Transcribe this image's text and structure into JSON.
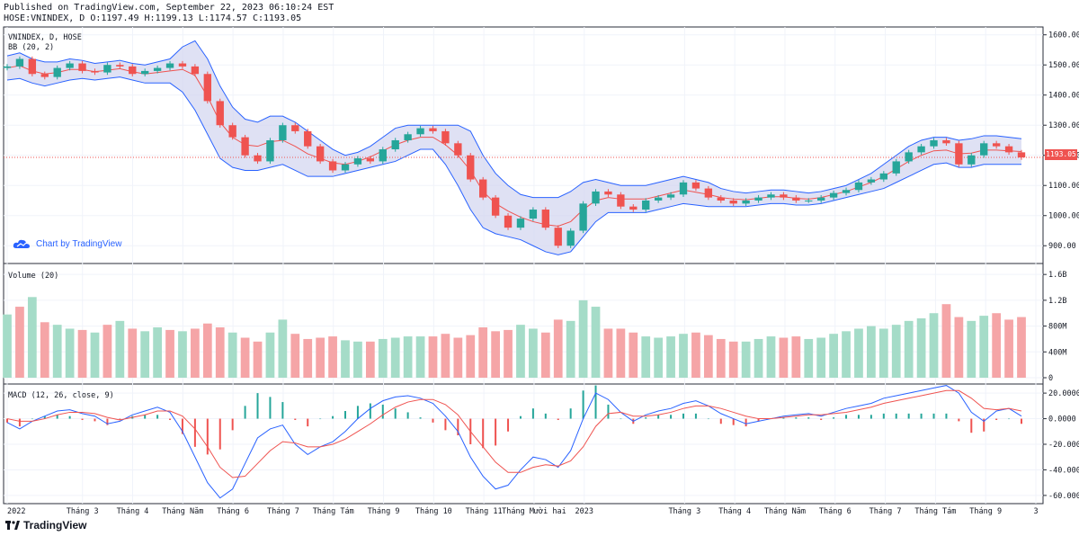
{
  "header": {
    "published": "Published on TradingView.com, September 22, 2023 06:10:24 EST",
    "ohlc": "HOSE:VNINDEX, D O:1197.49 H:1199.13 L:1174.57 C:1193.05"
  },
  "panes": {
    "price_title": "VNINDEX, D, HOSE",
    "bb_title": "BB (20, 2)",
    "volume_title": "Volume (20)",
    "macd_title": "MACD (12, 26, close, 9)",
    "last_price_tag": "1193.05"
  },
  "watermark": {
    "text": "Chart by TradingView",
    "icon": "tradingview-cloud-icon"
  },
  "logo": {
    "text": "TradingView",
    "icon": "tradingview-logo-icon"
  },
  "colors": {
    "up": "#26a69a",
    "down": "#ef5350",
    "bb_band": "#2962ff",
    "bb_fill": "#d1d4f0",
    "basis": "#ef5350",
    "macd_line": "#2962ff",
    "signal_line": "#ef5350",
    "vol_up": "#a5dcc8",
    "vol_down": "#f5a5a7",
    "grid": "#f0f3fa"
  },
  "chart_data": [
    {
      "type": "line",
      "name": "price",
      "ylim": [
        850,
        1620
      ],
      "y_ticks": [
        "1600.00",
        "1500.00",
        "1400.00",
        "1300.00",
        "1200.00",
        "1100.00",
        "1000.00",
        "900.00"
      ],
      "y_tick_values": [
        1600,
        1500,
        1400,
        1300,
        1200,
        1100,
        1000,
        900
      ],
      "x_month_labels": [
        "2022",
        "Tháng 3",
        "Tháng 4",
        "Tháng Năm",
        "Tháng 6",
        "Tháng 7",
        "Tháng Tám",
        "Tháng 9",
        "Tháng 10",
        "Tháng 11",
        "Tháng Mười hai",
        "2023",
        "Tháng 3",
        "Tháng 4",
        "Tháng Năm",
        "Tháng 6",
        "Tháng 7",
        "Tháng Tám",
        "Tháng 9",
        "3"
      ],
      "x_month_index": [
        0,
        1.5,
        2.5,
        3.5,
        4.5,
        5.5,
        6.5,
        7.5,
        8.5,
        9.5,
        10.5,
        11.5,
        13.5,
        14.5,
        15.5,
        16.5,
        17.5,
        18.5,
        19.5,
        20.5
      ],
      "close_series": [
        1495,
        1520,
        1470,
        1460,
        1490,
        1505,
        1480,
        1475,
        1500,
        1495,
        1470,
        1480,
        1490,
        1505,
        1495,
        1470,
        1380,
        1300,
        1260,
        1200,
        1180,
        1250,
        1300,
        1280,
        1230,
        1180,
        1150,
        1170,
        1190,
        1180,
        1220,
        1250,
        1270,
        1290,
        1280,
        1240,
        1200,
        1120,
        1060,
        1000,
        960,
        990,
        1020,
        960,
        900,
        950,
        1040,
        1080,
        1070,
        1030,
        1020,
        1050,
        1060,
        1070,
        1110,
        1090,
        1060,
        1050,
        1040,
        1050,
        1060,
        1070,
        1060,
        1050,
        1050,
        1060,
        1075,
        1085,
        1110,
        1120,
        1140,
        1180,
        1210,
        1230,
        1250,
        1240,
        1170,
        1200,
        1240,
        1230,
        1210,
        1193.05
      ],
      "bb_upper": [
        1530,
        1540,
        1520,
        1510,
        1510,
        1520,
        1515,
        1505,
        1510,
        1515,
        1505,
        1500,
        1510,
        1520,
        1560,
        1580,
        1520,
        1430,
        1360,
        1320,
        1310,
        1330,
        1330,
        1310,
        1280,
        1250,
        1220,
        1200,
        1210,
        1230,
        1260,
        1290,
        1300,
        1300,
        1300,
        1300,
        1300,
        1280,
        1200,
        1140,
        1100,
        1070,
        1060,
        1060,
        1060,
        1080,
        1110,
        1120,
        1110,
        1100,
        1100,
        1100,
        1110,
        1120,
        1130,
        1120,
        1110,
        1090,
        1080,
        1075,
        1080,
        1085,
        1085,
        1080,
        1075,
        1080,
        1090,
        1100,
        1120,
        1140,
        1170,
        1200,
        1230,
        1250,
        1260,
        1260,
        1250,
        1255,
        1265,
        1265,
        1260,
        1255
      ],
      "bb_lower": [
        1450,
        1455,
        1440,
        1430,
        1440,
        1450,
        1455,
        1450,
        1455,
        1460,
        1450,
        1440,
        1440,
        1440,
        1410,
        1350,
        1270,
        1190,
        1160,
        1150,
        1150,
        1160,
        1170,
        1150,
        1130,
        1130,
        1130,
        1140,
        1150,
        1160,
        1170,
        1180,
        1200,
        1220,
        1220,
        1170,
        1100,
        1020,
        960,
        940,
        930,
        920,
        900,
        880,
        870,
        880,
        930,
        980,
        1010,
        1010,
        1010,
        1010,
        1020,
        1030,
        1040,
        1035,
        1030,
        1030,
        1030,
        1030,
        1035,
        1040,
        1040,
        1035,
        1035,
        1040,
        1050,
        1060,
        1070,
        1080,
        1090,
        1110,
        1130,
        1150,
        1170,
        1175,
        1160,
        1160,
        1170,
        1170,
        1170,
        1170
      ]
    },
    {
      "type": "bar",
      "name": "volume",
      "ylim": [
        0,
        1700000000
      ],
      "y_ticks": [
        "1.6B",
        "1.2B",
        "800M",
        "400M",
        "0"
      ],
      "y_tick_values": [
        1600000000,
        1200000000,
        800000000,
        400000000,
        0
      ],
      "values_millions": [
        980,
        1100,
        1250,
        860,
        820,
        760,
        740,
        700,
        820,
        880,
        760,
        720,
        780,
        740,
        720,
        760,
        840,
        780,
        700,
        620,
        560,
        700,
        900,
        680,
        600,
        620,
        640,
        580,
        560,
        560,
        600,
        620,
        640,
        640,
        640,
        680,
        620,
        660,
        780,
        720,
        740,
        820,
        760,
        700,
        900,
        880,
        1200,
        1100,
        760,
        760,
        700,
        640,
        620,
        640,
        680,
        700,
        660,
        600,
        560,
        560,
        600,
        640,
        620,
        640,
        600,
        620,
        680,
        720,
        760,
        800,
        760,
        820,
        880,
        920,
        1000,
        1140,
        940,
        880,
        960,
        1000,
        900,
        940
      ],
      "up_flags": [
        1,
        0,
        1,
        0,
        1,
        1,
        0,
        1,
        0,
        1,
        0,
        1,
        1,
        0,
        1,
        0,
        0,
        0,
        1,
        0,
        0,
        1,
        1,
        0,
        0,
        0,
        0,
        1,
        1,
        0,
        1,
        1,
        1,
        1,
        0,
        0,
        0,
        0,
        0,
        0,
        0,
        1,
        1,
        0,
        0,
        1,
        1,
        1,
        0,
        0,
        0,
        1,
        1,
        1,
        1,
        0,
        0,
        0,
        0,
        1,
        1,
        1,
        0,
        0,
        1,
        1,
        1,
        1,
        1,
        1,
        1,
        1,
        1,
        1,
        1,
        0,
        0,
        1,
        1,
        0,
        0,
        0
      ]
    },
    {
      "type": "line",
      "name": "macd",
      "ylim": [
        -65,
        25
      ],
      "y_ticks": [
        "20.0000",
        "0.0000",
        "-20.0000",
        "-40.0000",
        "-60.0000"
      ],
      "y_tick_values": [
        20,
        0,
        -20,
        -40,
        -60
      ],
      "macd": [
        -3,
        -8,
        -2,
        2,
        6,
        7,
        4,
        2,
        -4,
        -2,
        3,
        6,
        9,
        5,
        -10,
        -30,
        -50,
        -62,
        -55,
        -35,
        -15,
        -8,
        -5,
        -20,
        -28,
        -22,
        -18,
        -10,
        0,
        8,
        14,
        17,
        18,
        16,
        12,
        2,
        -10,
        -30,
        -45,
        -55,
        -52,
        -40,
        -30,
        -32,
        -38,
        -25,
        0,
        20,
        15,
        5,
        -2,
        3,
        6,
        8,
        12,
        14,
        10,
        4,
        0,
        -4,
        -2,
        0,
        2,
        3,
        4,
        2,
        5,
        8,
        10,
        12,
        16,
        18,
        20,
        22,
        24,
        26,
        20,
        5,
        -2,
        6,
        8,
        2
      ],
      "signal": [
        0,
        -2,
        -2,
        0,
        3,
        5,
        5,
        4,
        1,
        -1,
        1,
        3,
        6,
        6,
        2,
        -8,
        -22,
        -38,
        -46,
        -45,
        -35,
        -25,
        -18,
        -19,
        -22,
        -22,
        -20,
        -16,
        -10,
        -4,
        3,
        9,
        13,
        15,
        15,
        11,
        3,
        -10,
        -22,
        -34,
        -42,
        -42,
        -38,
        -36,
        -37,
        -33,
        -22,
        -6,
        4,
        5,
        2,
        2,
        3,
        5,
        8,
        10,
        10,
        8,
        5,
        2,
        0,
        0,
        1,
        2,
        3,
        3,
        4,
        5,
        7,
        9,
        12,
        14,
        16,
        18,
        20,
        22,
        22,
        16,
        8,
        7,
        8,
        6
      ]
    }
  ]
}
